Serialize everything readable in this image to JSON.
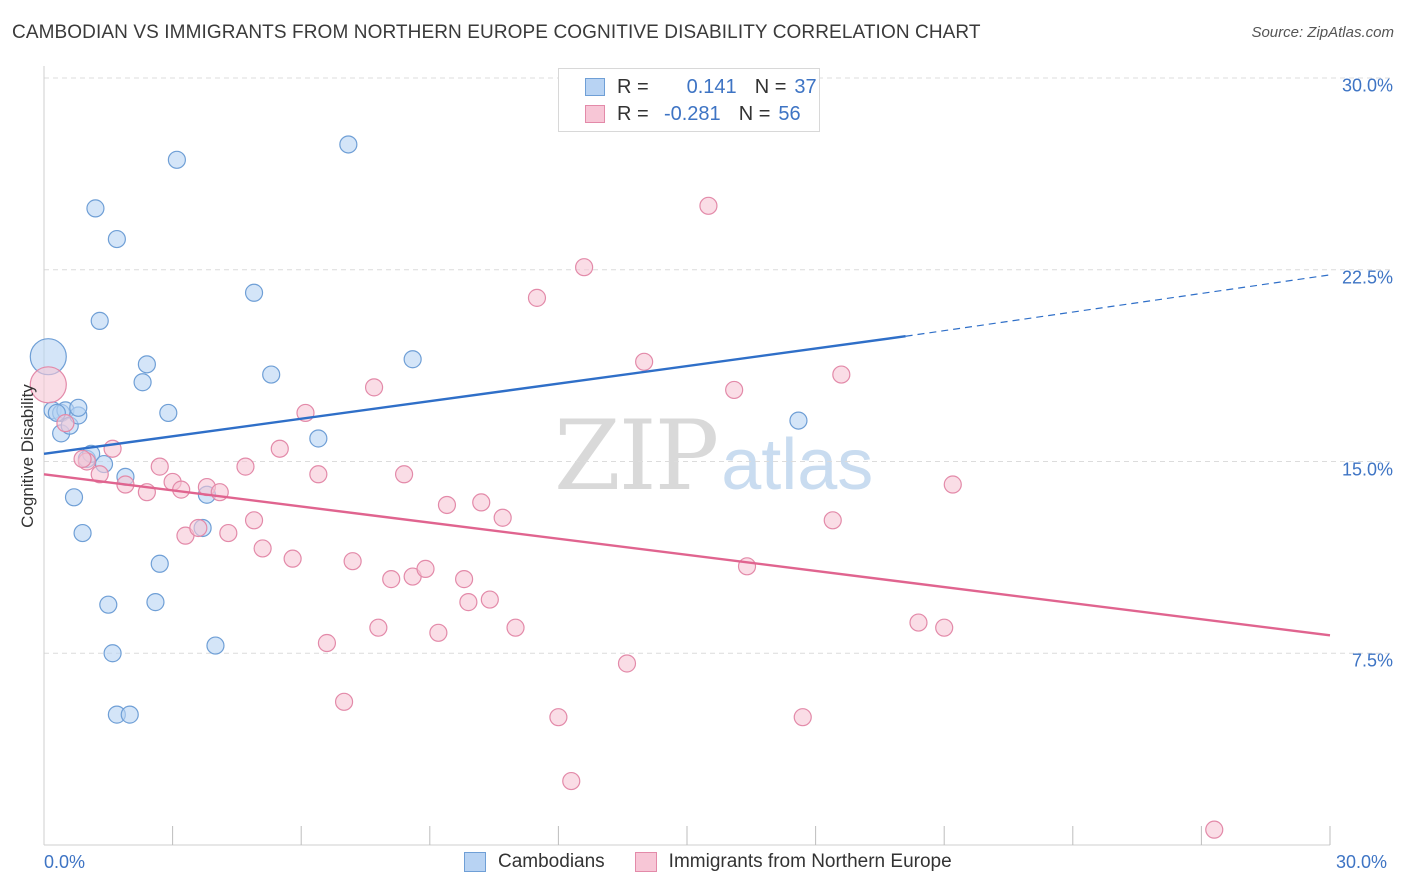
{
  "header": {
    "title": "CAMBODIAN VS IMMIGRANTS FROM NORTHERN EUROPE COGNITIVE DISABILITY CORRELATION CHART",
    "source": "Source: ZipAtlas.com"
  },
  "watermark": {
    "zip": "ZIP",
    "atlas": "atlas"
  },
  "legend_top": {
    "rows": [
      {
        "r_label": "R =",
        "r_value": "0.141",
        "n_label": "N =",
        "n_value": "37"
      },
      {
        "r_label": "R =",
        "r_value": "-0.281",
        "n_label": "N =",
        "n_value": "56"
      }
    ]
  },
  "legend_bottom": {
    "series1": "Cambodians",
    "series2": "Immigrants from Northern Europe"
  },
  "colors": {
    "blue_fill": "#b8d3f3",
    "blue_stroke": "#6f9fd6",
    "blue_line": "#2f6fc8",
    "pink_fill": "#f7c6d6",
    "pink_stroke": "#e38aa9",
    "pink_line": "#e0648f",
    "axis_text": "#3e74c4",
    "grid": "#dcdcdc"
  },
  "chart_data": {
    "type": "scatter",
    "title": "CAMBODIAN VS IMMIGRANTS FROM NORTHERN EUROPE COGNITIVE DISABILITY CORRELATION CHART",
    "xlabel": "",
    "ylabel": "Cognitive Disability",
    "xlim": [
      0,
      30
    ],
    "ylim": [
      0,
      30
    ],
    "x_tick_labels": [
      "0.0%",
      "30.0%"
    ],
    "y_ticks": [
      7.5,
      15.0,
      22.5,
      30.0
    ],
    "y_tick_labels": [
      "7.5%",
      "15.0%",
      "22.5%",
      "30.0%"
    ],
    "grid": true,
    "legend_position": "top-center",
    "series": [
      {
        "name": "Cambodians",
        "r": 0.141,
        "n": 37,
        "trend": {
          "x": [
            0,
            20.1
          ],
          "y": [
            15.3,
            19.9
          ],
          "dashed_to": [
            30,
            22.3
          ]
        },
        "points": [
          {
            "x": 0.1,
            "y": 19.1,
            "big": true
          },
          {
            "x": 0.2,
            "y": 17.0
          },
          {
            "x": 0.4,
            "y": 16.9
          },
          {
            "x": 0.4,
            "y": 16.1
          },
          {
            "x": 0.5,
            "y": 17.0
          },
          {
            "x": 0.6,
            "y": 16.4
          },
          {
            "x": 0.7,
            "y": 13.6
          },
          {
            "x": 0.8,
            "y": 16.8
          },
          {
            "x": 0.8,
            "y": 17.1
          },
          {
            "x": 0.9,
            "y": 12.2
          },
          {
            "x": 1.0,
            "y": 15.1
          },
          {
            "x": 1.1,
            "y": 15.3
          },
          {
            "x": 1.2,
            "y": 24.9
          },
          {
            "x": 1.3,
            "y": 20.5
          },
          {
            "x": 1.4,
            "y": 14.9
          },
          {
            "x": 1.5,
            "y": 9.4
          },
          {
            "x": 1.6,
            "y": 7.5
          },
          {
            "x": 1.7,
            "y": 23.7
          },
          {
            "x": 1.7,
            "y": 5.1
          },
          {
            "x": 1.9,
            "y": 14.4
          },
          {
            "x": 2.0,
            "y": 5.1
          },
          {
            "x": 2.3,
            "y": 18.1
          },
          {
            "x": 2.4,
            "y": 18.8
          },
          {
            "x": 2.6,
            "y": 9.5
          },
          {
            "x": 2.7,
            "y": 11.0
          },
          {
            "x": 2.9,
            "y": 16.9
          },
          {
            "x": 3.1,
            "y": 26.8
          },
          {
            "x": 3.7,
            "y": 12.4
          },
          {
            "x": 3.8,
            "y": 13.7
          },
          {
            "x": 4.0,
            "y": 7.8
          },
          {
            "x": 4.9,
            "y": 21.6
          },
          {
            "x": 5.3,
            "y": 18.4
          },
          {
            "x": 6.4,
            "y": 15.9
          },
          {
            "x": 7.1,
            "y": 27.4
          },
          {
            "x": 8.6,
            "y": 19.0
          },
          {
            "x": 17.6,
            "y": 16.6
          },
          {
            "x": 0.3,
            "y": 16.9
          }
        ]
      },
      {
        "name": "Immigrants from Northern Europe",
        "r": -0.281,
        "n": 56,
        "trend": {
          "x": [
            0,
            30
          ],
          "y": [
            14.5,
            8.2
          ]
        },
        "points": [
          {
            "x": 0.1,
            "y": 18.0,
            "big": true
          },
          {
            "x": 0.5,
            "y": 16.5
          },
          {
            "x": 1.0,
            "y": 15.0
          },
          {
            "x": 1.3,
            "y": 14.5
          },
          {
            "x": 1.6,
            "y": 15.5
          },
          {
            "x": 1.9,
            "y": 14.1
          },
          {
            "x": 2.4,
            "y": 13.8
          },
          {
            "x": 2.7,
            "y": 14.8
          },
          {
            "x": 3.0,
            "y": 14.2
          },
          {
            "x": 3.3,
            "y": 12.1
          },
          {
            "x": 3.6,
            "y": 12.4
          },
          {
            "x": 3.8,
            "y": 14.0
          },
          {
            "x": 4.1,
            "y": 13.8
          },
          {
            "x": 4.3,
            "y": 12.2
          },
          {
            "x": 4.7,
            "y": 14.8
          },
          {
            "x": 4.9,
            "y": 12.7
          },
          {
            "x": 5.1,
            "y": 11.6
          },
          {
            "x": 5.5,
            "y": 15.5
          },
          {
            "x": 5.8,
            "y": 11.2
          },
          {
            "x": 6.1,
            "y": 16.9
          },
          {
            "x": 6.4,
            "y": 14.5
          },
          {
            "x": 6.6,
            "y": 7.9
          },
          {
            "x": 7.0,
            "y": 5.6
          },
          {
            "x": 7.2,
            "y": 11.1
          },
          {
            "x": 7.7,
            "y": 17.9
          },
          {
            "x": 7.8,
            "y": 8.5
          },
          {
            "x": 8.1,
            "y": 10.4
          },
          {
            "x": 8.4,
            "y": 14.5
          },
          {
            "x": 8.6,
            "y": 10.5
          },
          {
            "x": 8.9,
            "y": 10.8
          },
          {
            "x": 9.2,
            "y": 8.3
          },
          {
            "x": 9.4,
            "y": 13.3
          },
          {
            "x": 9.8,
            "y": 10.4
          },
          {
            "x": 9.9,
            "y": 9.5
          },
          {
            "x": 10.2,
            "y": 13.4
          },
          {
            "x": 10.4,
            "y": 9.6
          },
          {
            "x": 10.7,
            "y": 12.8
          },
          {
            "x": 11.0,
            "y": 8.5
          },
          {
            "x": 11.5,
            "y": 21.4
          },
          {
            "x": 12.0,
            "y": 5.0
          },
          {
            "x": 12.3,
            "y": 2.5
          },
          {
            "x": 12.6,
            "y": 22.6
          },
          {
            "x": 13.6,
            "y": 7.1
          },
          {
            "x": 14.0,
            "y": 18.9
          },
          {
            "x": 15.5,
            "y": 25.0
          },
          {
            "x": 16.1,
            "y": 17.8
          },
          {
            "x": 16.4,
            "y": 10.9
          },
          {
            "x": 17.7,
            "y": 5.0
          },
          {
            "x": 18.4,
            "y": 12.7
          },
          {
            "x": 18.6,
            "y": 18.4
          },
          {
            "x": 20.4,
            "y": 8.7
          },
          {
            "x": 21.0,
            "y": 8.5
          },
          {
            "x": 21.2,
            "y": 14.1
          },
          {
            "x": 27.3,
            "y": 0.6
          },
          {
            "x": 0.9,
            "y": 15.1
          },
          {
            "x": 3.2,
            "y": 13.9
          }
        ]
      }
    ]
  }
}
